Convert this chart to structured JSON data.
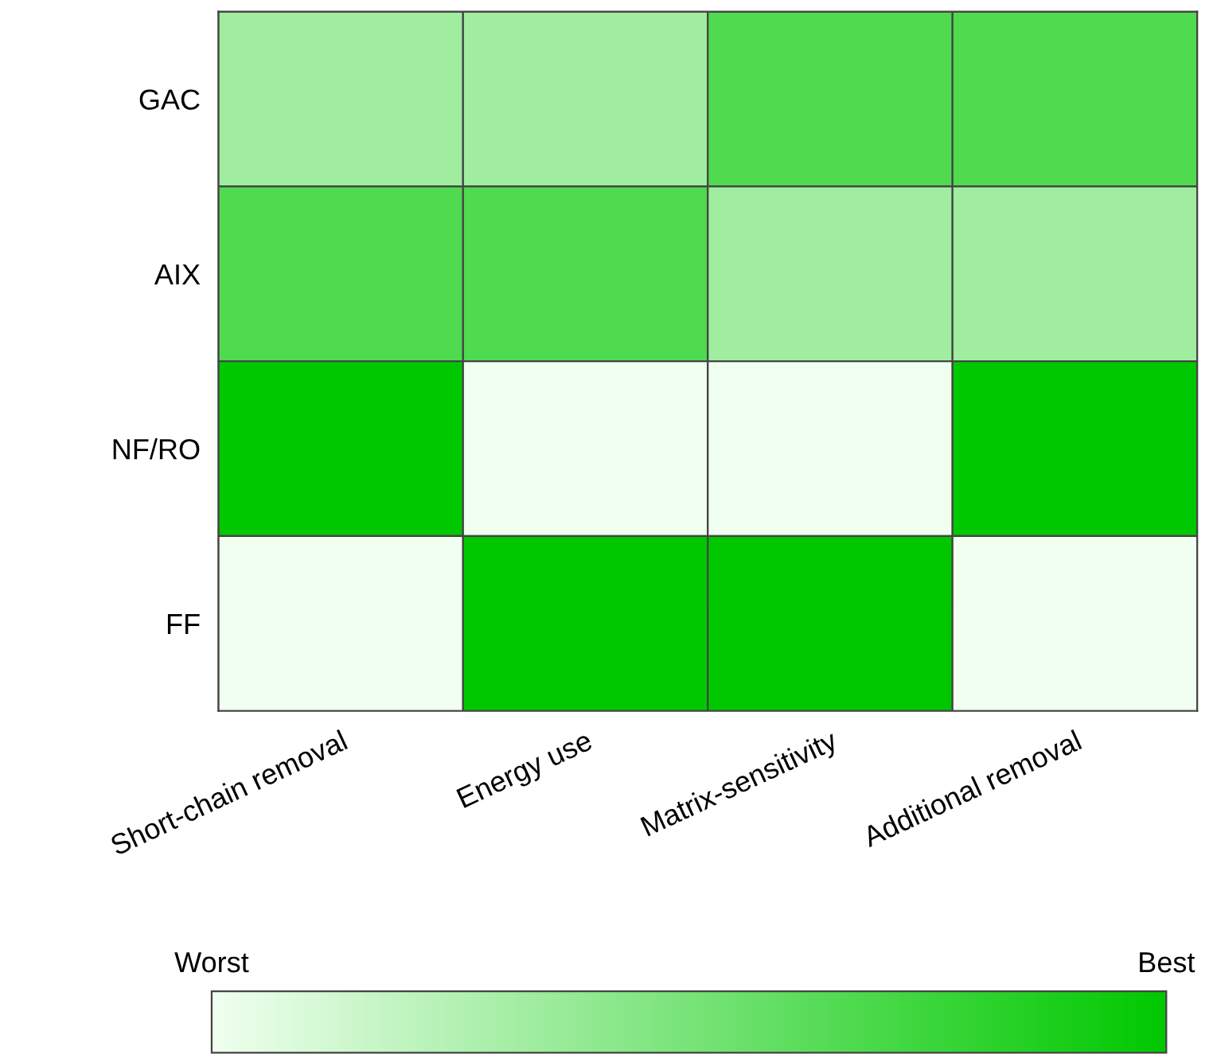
{
  "chart_data": {
    "type": "heatmap",
    "categories": [
      "Short-chain removal",
      "Energy use",
      "Matrix-sensitivity",
      "Additional removal"
    ],
    "y_categories": [
      "GAC",
      "AIX",
      "NF/RO",
      "FF"
    ],
    "cells": [
      [
        2,
        2,
        3,
        3
      ],
      [
        3,
        3,
        2,
        2
      ],
      [
        4,
        1,
        1,
        4
      ],
      [
        1,
        4,
        4,
        1
      ]
    ],
    "colors": [
      "#f0fff0",
      "#00c800"
    ],
    "clim": [
      1,
      4
    ],
    "cticks": [
      {
        "value": 1,
        "label": "Worst"
      },
      {
        "value": 4,
        "label": "Best"
      }
    ]
  }
}
